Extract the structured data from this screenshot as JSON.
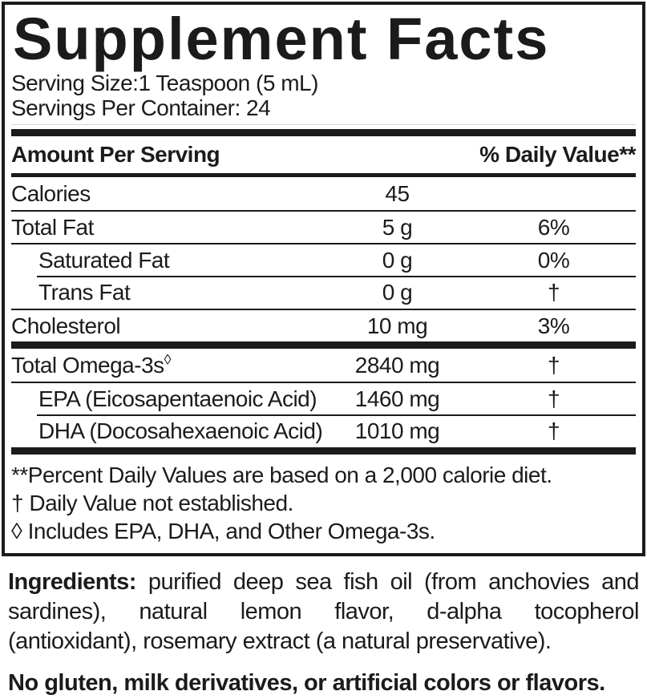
{
  "colors": {
    "ink": "#1b1b1b"
  },
  "title": "Supplement Facts",
  "serving": {
    "size": "Serving Size:1 Teaspoon (5 mL)",
    "per_container": "Servings Per Container: 24"
  },
  "header": {
    "amount": "Amount Per Serving",
    "daily_value": "% Daily Value**"
  },
  "rows": [
    {
      "name": "Calories",
      "amount": "45",
      "dv": ""
    },
    {
      "name": "Total Fat",
      "amount": "5 g",
      "dv": "6%"
    },
    {
      "name": "Saturated Fat",
      "amount": "0 g",
      "dv": "0%"
    },
    {
      "name": "Trans Fat",
      "amount": "0 g",
      "dv": "†"
    },
    {
      "name": "Cholesterol",
      "amount": "10 mg",
      "dv": "3%"
    }
  ],
  "omega_rows": [
    {
      "name": "Total Omega-3s",
      "symbol": "◊",
      "amount": "2840 mg",
      "dv": "†"
    },
    {
      "name": "EPA (Eicosapentaenoic Acid)",
      "symbol": "",
      "amount": "1460 mg",
      "dv": "†"
    },
    {
      "name": "DHA (Docosahexaenoic Acid)",
      "symbol": "",
      "amount": "1010 mg",
      "dv": "†"
    }
  ],
  "footnotes": [
    "**Percent Daily Values are based on a 2,000 calorie diet.",
    "† Daily Value not established.",
    "◊ Includes EPA, DHA, and Other Omega-3s."
  ],
  "ingredients": {
    "label": "Ingredients:",
    "text": "purified deep sea fish oil (from anchovies and sardines), natural lemon flavor, d-alpha tocopherol (antioxidant), rosemary extract (a natural preservative)."
  },
  "allergen_statement": "No gluten, milk derivatives, or artificial colors or flavors."
}
